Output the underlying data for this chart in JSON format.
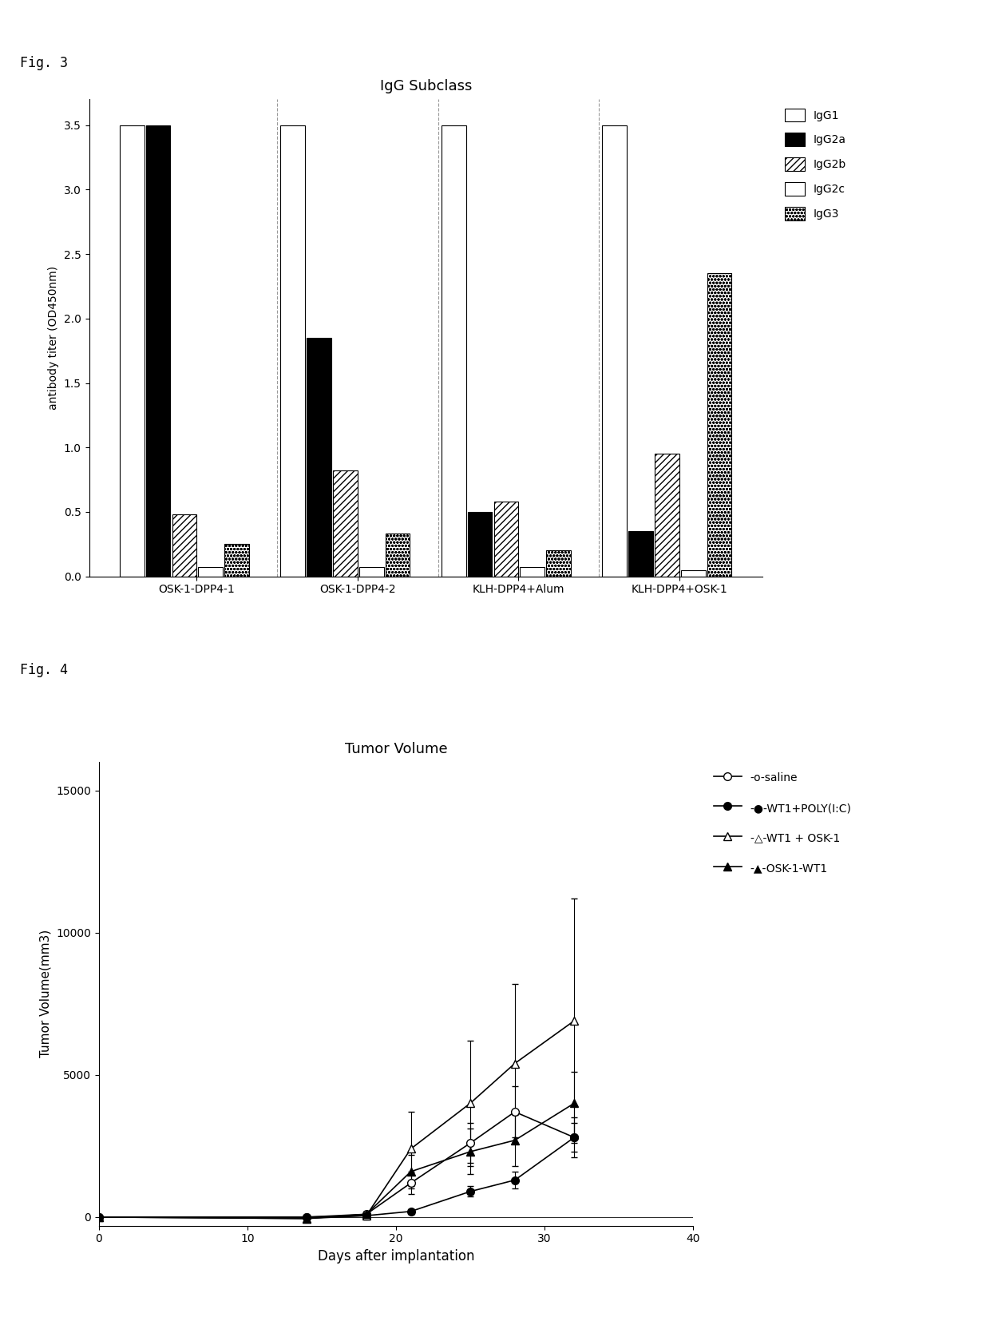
{
  "fig3_title": "IgG Subclass",
  "fig3_ylabel": "antibody titer (OD450nm)",
  "fig3_ylim": [
    0,
    3.7
  ],
  "fig3_yticks": [
    0,
    0.5,
    1.0,
    1.5,
    2.0,
    2.5,
    3.0,
    3.5
  ],
  "fig3_groups": [
    "OSK-1-DPP4-1",
    "OSK-1-DPP4-2",
    "KLH-DPP4+Alum",
    "KLH-DPP4+OSK-1"
  ],
  "fig3_subclasses": [
    "IgG1",
    "IgG2a",
    "IgG2b",
    "IgG2c",
    "IgG3"
  ],
  "fig3_data": {
    "IgG1": [
      3.5,
      3.5,
      3.5,
      3.5
    ],
    "IgG2a": [
      3.5,
      1.85,
      0.5,
      0.35
    ],
    "IgG2b": [
      0.48,
      0.82,
      0.58,
      0.95
    ],
    "IgG2c": [
      0.07,
      0.07,
      0.07,
      0.05
    ],
    "IgG3": [
      0.25,
      0.33,
      0.2,
      2.35
    ]
  },
  "fig3_hatch": [
    "",
    "....",
    "////",
    "",
    "oooo"
  ],
  "fig3_facecolor": [
    "white",
    "black",
    "white",
    "white",
    "white"
  ],
  "fig3_edgecolor": [
    "black",
    "black",
    "black",
    "black",
    "black"
  ],
  "fig4_title": "Tumor Volume",
  "fig4_ylabel": "Tumor Volume(mm3)",
  "fig4_xlabel": "Days after implantation",
  "fig4_ylim": [
    -300,
    16000
  ],
  "fig4_yticks": [
    0,
    5000,
    10000,
    15000
  ],
  "fig4_xlim": [
    0,
    40
  ],
  "fig4_xticks": [
    0,
    10,
    20,
    30,
    40
  ],
  "fig4_series": {
    "saline": {
      "x": [
        0,
        14,
        18,
        21,
        25,
        28,
        32
      ],
      "y": [
        0,
        0,
        100,
        1200,
        2600,
        3700,
        2800
      ],
      "yerr": [
        0,
        0,
        80,
        400,
        700,
        900,
        700
      ],
      "marker": "o",
      "mfc": "white",
      "color": "black",
      "label": "-o-saline"
    },
    "WT1+POLY(I:C)": {
      "x": [
        0,
        14,
        18,
        21,
        25,
        28,
        32
      ],
      "y": [
        0,
        0,
        50,
        200,
        900,
        1300,
        2800
      ],
      "yerr": [
        0,
        0,
        30,
        80,
        180,
        300,
        500
      ],
      "marker": "o",
      "mfc": "black",
      "color": "black",
      "label": "-●-WT1+POLY(I:C)"
    },
    "WT1 + OSK-1": {
      "x": [
        0,
        14,
        18,
        21,
        25,
        28,
        32
      ],
      "y": [
        0,
        -50,
        50,
        2400,
        4000,
        5400,
        6900
      ],
      "yerr": [
        0,
        0,
        150,
        1300,
        2200,
        2800,
        4300
      ],
      "marker": "^",
      "mfc": "white",
      "color": "black",
      "label": "-△-WT1 + OSK-1"
    },
    "OSK-1-WT1": {
      "x": [
        0,
        14,
        18,
        21,
        25,
        28,
        32
      ],
      "y": [
        0,
        -50,
        100,
        1600,
        2300,
        2700,
        4000
      ],
      "yerr": [
        0,
        0,
        100,
        600,
        800,
        900,
        1100
      ],
      "marker": "^",
      "mfc": "black",
      "color": "black",
      "label": "-▲-OSK-1-WT1"
    }
  },
  "background_color": "white",
  "fig3_label": "Fig. 3",
  "fig4_label": "Fig. 4"
}
